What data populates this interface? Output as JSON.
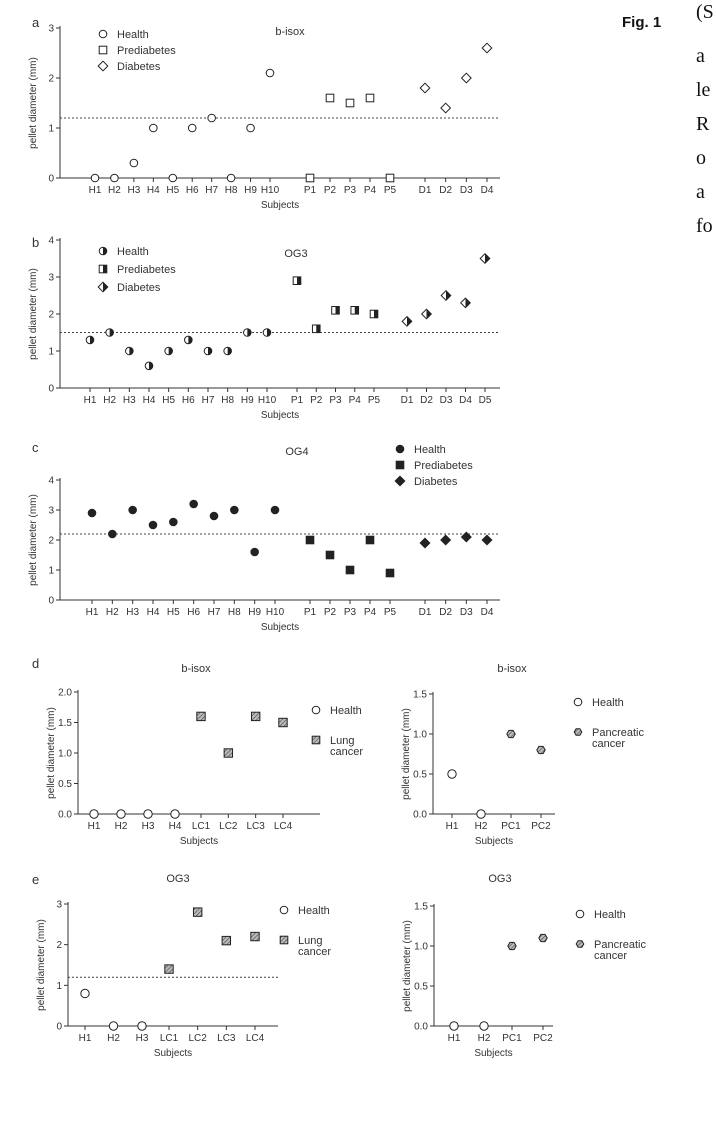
{
  "figure_label": "Fig. 1",
  "side_text": [
    "(S",
    "a",
    "le",
    "R",
    "o",
    "a",
    "fo"
  ],
  "chart_data": [
    {
      "panel": "a",
      "type": "scatter",
      "title": "b-isox",
      "xlabel": "Subjects",
      "ylabel": "pellet diameter (mm)",
      "ylim": [
        0,
        3
      ],
      "yticks": [
        "0",
        "1",
        "2",
        "3"
      ],
      "threshold": 1.2,
      "categories": [
        "H1",
        "H2",
        "H3",
        "H4",
        "H5",
        "H6",
        "H7",
        "H8",
        "H9",
        "H10",
        "P1",
        "P2",
        "P3",
        "P4",
        "P5",
        "D1",
        "D2",
        "D3",
        "D4"
      ],
      "series": [
        {
          "name": "Health",
          "marker": "circle-open",
          "points": [
            [
              "H1",
              0
            ],
            [
              "H2",
              0
            ],
            [
              "H3",
              0.3
            ],
            [
              "H4",
              1.0
            ],
            [
              "H5",
              0
            ],
            [
              "H6",
              1.0
            ],
            [
              "H7",
              1.2
            ],
            [
              "H8",
              0
            ],
            [
              "H9",
              1.0
            ],
            [
              "H10",
              2.1
            ]
          ]
        },
        {
          "name": "Prediabetes",
          "marker": "square-open",
          "points": [
            [
              "P1",
              0
            ],
            [
              "P2",
              1.6
            ],
            [
              "P3",
              1.5
            ],
            [
              "P4",
              1.6
            ],
            [
              "P5",
              0
            ]
          ]
        },
        {
          "name": "Diabetes",
          "marker": "diamond-open",
          "points": [
            [
              "D1",
              1.8
            ],
            [
              "D2",
              1.4
            ],
            [
              "D3",
              2.0
            ],
            [
              "D4",
              2.6
            ]
          ]
        }
      ]
    },
    {
      "panel": "b",
      "type": "scatter",
      "title": "OG3",
      "xlabel": "Subjects",
      "ylabel": "pellet diameter (mm)",
      "ylim": [
        0,
        4
      ],
      "yticks": [
        "0",
        "1",
        "2",
        "3",
        "4"
      ],
      "threshold": 1.5,
      "categories": [
        "H1",
        "H2",
        "H3",
        "H4",
        "H5",
        "H6",
        "H7",
        "H8",
        "H9",
        "H10",
        "P1",
        "P2",
        "P3",
        "P4",
        "P5",
        "D1",
        "D2",
        "D3",
        "D4",
        "D5"
      ],
      "series": [
        {
          "name": "Health",
          "marker": "circle-half",
          "points": [
            [
              "H1",
              1.3
            ],
            [
              "H2",
              1.5
            ],
            [
              "H3",
              1.0
            ],
            [
              "H4",
              0.6
            ],
            [
              "H5",
              1.0
            ],
            [
              "H6",
              1.3
            ],
            [
              "H7",
              1.0
            ],
            [
              "H8",
              1.0
            ],
            [
              "H9",
              1.5
            ],
            [
              "H10",
              1.5
            ]
          ]
        },
        {
          "name": "Prediabetes",
          "marker": "square-half",
          "points": [
            [
              "P1",
              2.9
            ],
            [
              "P2",
              1.6
            ],
            [
              "P3",
              2.1
            ],
            [
              "P4",
              2.1
            ],
            [
              "P5",
              2.0
            ]
          ]
        },
        {
          "name": "Diabetes",
          "marker": "diamond-half",
          "points": [
            [
              "D1",
              1.8
            ],
            [
              "D2",
              2.0
            ],
            [
              "D3",
              2.5
            ],
            [
              "D4",
              2.3
            ],
            [
              "D5",
              3.5
            ]
          ]
        }
      ]
    },
    {
      "panel": "c",
      "type": "scatter",
      "title": "OG4",
      "xlabel": "Subjects",
      "ylabel": "pellet diameter (mm)",
      "ylim": [
        0,
        4
      ],
      "yticks": [
        "0",
        "1",
        "2",
        "3",
        "4"
      ],
      "threshold": 2.2,
      "categories": [
        "H1",
        "H2",
        "H3",
        "H4",
        "H5",
        "H6",
        "H7",
        "H8",
        "H9",
        "H10",
        "P1",
        "P2",
        "P3",
        "P4",
        "P5",
        "D1",
        "D2",
        "D3",
        "D4"
      ],
      "series": [
        {
          "name": "Health",
          "marker": "circle-filled",
          "points": [
            [
              "H1",
              2.9
            ],
            [
              "H2",
              2.2
            ],
            [
              "H3",
              3.0
            ],
            [
              "H4",
              2.5
            ],
            [
              "H5",
              2.6
            ],
            [
              "H6",
              3.2
            ],
            [
              "H7",
              2.8
            ],
            [
              "H8",
              3.0
            ],
            [
              "H9",
              1.6
            ],
            [
              "H10",
              3.0
            ]
          ]
        },
        {
          "name": "Prediabetes",
          "marker": "square-filled",
          "points": [
            [
              "P1",
              2.0
            ],
            [
              "P2",
              1.5
            ],
            [
              "P3",
              1.0
            ],
            [
              "P4",
              2.0
            ],
            [
              "P5",
              0.9
            ]
          ]
        },
        {
          "name": "Diabetes",
          "marker": "diamond-filled",
          "points": [
            [
              "D1",
              1.9
            ],
            [
              "D2",
              2.0
            ],
            [
              "D3",
              2.1
            ],
            [
              "D4",
              2.0
            ]
          ]
        }
      ]
    },
    {
      "panel": "d",
      "type": "scatter",
      "title": "b-isox",
      "xlabel": "Subjects",
      "ylabel": "pellet diameter (mm)",
      "ylim": [
        0,
        2.0
      ],
      "yticks": [
        "0.0",
        "0.5",
        "1.0",
        "1.5",
        "2.0"
      ],
      "threshold": null,
      "categories": [
        "H1",
        "H2",
        "H3",
        "H4",
        "LC1",
        "LC2",
        "LC3",
        "LC4"
      ],
      "series": [
        {
          "name": "Health",
          "marker": "circle-open",
          "points": [
            [
              "H1",
              0
            ],
            [
              "H2",
              0
            ],
            [
              "H3",
              0
            ],
            [
              "H4",
              0
            ]
          ]
        },
        {
          "name": "Lung cancer",
          "marker": "square-hatched",
          "points": [
            [
              "LC1",
              1.6
            ],
            [
              "LC2",
              1.0
            ],
            [
              "LC3",
              1.6
            ],
            [
              "LC4",
              1.5
            ]
          ]
        }
      ]
    },
    {
      "panel": "d2",
      "type": "scatter",
      "title": "b-isox",
      "xlabel": "Subjects",
      "ylabel": "pellet diameter (mm)",
      "ylim": [
        0,
        1.5
      ],
      "yticks": [
        "0.0",
        "0.5",
        "1.0",
        "1.5"
      ],
      "threshold": null,
      "categories": [
        "H1",
        "H2",
        "PC1",
        "PC2"
      ],
      "series": [
        {
          "name": "Health",
          "marker": "circle-open",
          "points": [
            [
              "H1",
              0.5
            ],
            [
              "H2",
              0
            ]
          ]
        },
        {
          "name": "Pancreatic cancer",
          "marker": "hex-hatched",
          "points": [
            [
              "PC1",
              1.0
            ],
            [
              "PC2",
              0.8
            ]
          ]
        }
      ]
    },
    {
      "panel": "e",
      "type": "scatter",
      "title": "OG3",
      "xlabel": "Subjects",
      "ylabel": "pellet diameter (mm)",
      "ylim": [
        0,
        3
      ],
      "yticks": [
        "0",
        "1",
        "2",
        "3"
      ],
      "threshold": 1.2,
      "categories": [
        "H1",
        "H2",
        "H3",
        "LC1",
        "LC2",
        "LC3",
        "LC4"
      ],
      "series": [
        {
          "name": "Health",
          "marker": "circle-open",
          "points": [
            [
              "H1",
              0.8
            ],
            [
              "H2",
              0
            ],
            [
              "H3",
              0
            ]
          ]
        },
        {
          "name": "Lung cancer",
          "marker": "square-hatched",
          "points": [
            [
              "LC1",
              1.4
            ],
            [
              "LC2",
              2.8
            ],
            [
              "LC3",
              2.1
            ],
            [
              "LC4",
              2.2
            ]
          ]
        }
      ]
    },
    {
      "panel": "e2",
      "type": "scatter",
      "title": "OG3",
      "xlabel": "Subjects",
      "ylabel": "pellet diameter (mm)",
      "ylim": [
        0,
        1.5
      ],
      "yticks": [
        "0.0",
        "0.5",
        "1.0",
        "1.5"
      ],
      "threshold": null,
      "categories": [
        "H1",
        "H2",
        "PC1",
        "PC2"
      ],
      "series": [
        {
          "name": "Health",
          "marker": "circle-open",
          "points": [
            [
              "H1",
              0
            ],
            [
              "H2",
              0
            ]
          ]
        },
        {
          "name": "Pancreatic cancer",
          "marker": "hex-hatched",
          "points": [
            [
              "PC1",
              1.0
            ],
            [
              "PC2",
              1.1
            ]
          ]
        }
      ]
    }
  ]
}
